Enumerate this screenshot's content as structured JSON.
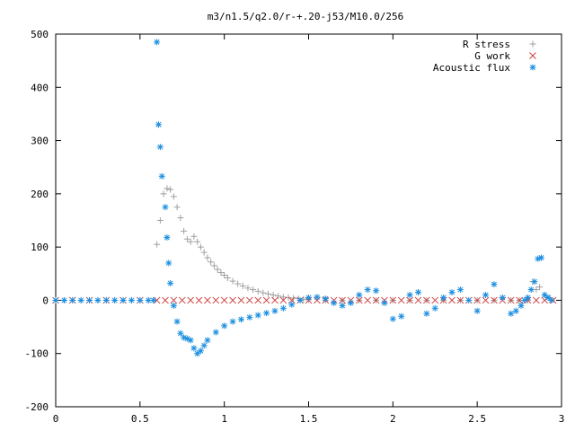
{
  "chart_data": {
    "type": "scatter",
    "title": "m3/n1.5/q2.0/r-+.20-j53/M10.0/256",
    "xlabel": "",
    "ylabel": "",
    "xlim": [
      0,
      3
    ],
    "ylim": [
      -200,
      500
    ],
    "xticks": [
      {
        "value": 0,
        "label": "0"
      },
      {
        "value": 0.5,
        "label": "0.5"
      },
      {
        "value": 1,
        "label": "1"
      },
      {
        "value": 1.5,
        "label": "1.5"
      },
      {
        "value": 2,
        "label": "2"
      },
      {
        "value": 2.5,
        "label": "2.5"
      },
      {
        "value": 3,
        "label": "3"
      }
    ],
    "yticks": [
      {
        "value": -200,
        "label": "-200"
      },
      {
        "value": -100,
        "label": "-100"
      },
      {
        "value": 0,
        "label": "0"
      },
      {
        "value": 100,
        "label": "100"
      },
      {
        "value": 200,
        "label": "200"
      },
      {
        "value": 300,
        "label": "300"
      },
      {
        "value": 400,
        "label": "400"
      },
      {
        "value": 500,
        "label": "500"
      }
    ],
    "grid": false,
    "legend_position": "top-right",
    "series": [
      {
        "name": "R stress",
        "marker": "plus",
        "color": "#a0a0a0",
        "x": [
          0.0,
          0.05,
          0.1,
          0.15,
          0.2,
          0.25,
          0.3,
          0.35,
          0.4,
          0.45,
          0.5,
          0.55,
          0.58,
          0.6,
          0.62,
          0.64,
          0.66,
          0.68,
          0.7,
          0.72,
          0.74,
          0.76,
          0.78,
          0.8,
          0.82,
          0.84,
          0.86,
          0.88,
          0.9,
          0.92,
          0.94,
          0.96,
          0.98,
          1.0,
          1.02,
          1.05,
          1.08,
          1.11,
          1.14,
          1.17,
          1.2,
          1.23,
          1.26,
          1.29,
          1.32,
          1.35,
          1.38,
          1.41,
          1.44,
          1.47,
          1.5,
          1.6,
          1.7,
          1.8,
          1.9,
          2.0,
          2.1,
          2.2,
          2.3,
          2.4,
          2.5,
          2.6,
          2.7,
          2.75,
          2.8,
          2.83,
          2.85,
          2.87,
          2.9,
          2.93
        ],
        "y": [
          0,
          0,
          0,
          0,
          0,
          0,
          0,
          0,
          0,
          0,
          0,
          0,
          0,
          105,
          150,
          200,
          210,
          208,
          195,
          175,
          155,
          130,
          115,
          110,
          120,
          110,
          100,
          90,
          80,
          72,
          65,
          58,
          52,
          47,
          42,
          36,
          31,
          27,
          23,
          20,
          17,
          14,
          12,
          10,
          8,
          6,
          5,
          4,
          3,
          2,
          1,
          0,
          0,
          0,
          0,
          0,
          0,
          0,
          0,
          0,
          0,
          0,
          0,
          0,
          0,
          35,
          20,
          25,
          10,
          5
        ]
      },
      {
        "name": "G work",
        "marker": "cross",
        "color": "#d04040",
        "x": [
          0.0,
          0.1,
          0.2,
          0.3,
          0.4,
          0.5,
          0.6,
          0.65,
          0.7,
          0.75,
          0.8,
          0.85,
          0.9,
          0.95,
          1.0,
          1.05,
          1.1,
          1.15,
          1.2,
          1.25,
          1.3,
          1.35,
          1.4,
          1.45,
          1.5,
          1.55,
          1.6,
          1.65,
          1.7,
          1.75,
          1.8,
          1.85,
          1.9,
          1.95,
          2.0,
          2.05,
          2.1,
          2.15,
          2.2,
          2.25,
          2.3,
          2.35,
          2.4,
          2.45,
          2.5,
          2.55,
          2.6,
          2.65,
          2.7,
          2.75,
          2.8,
          2.85,
          2.9,
          2.95
        ],
        "y": [
          0,
          0,
          0,
          0,
          0,
          0,
          0,
          0,
          0,
          0,
          0,
          0,
          0,
          0,
          0,
          0,
          0,
          0,
          0,
          0,
          0,
          0,
          0,
          0,
          0,
          0,
          0,
          0,
          0,
          0,
          0,
          0,
          0,
          0,
          0,
          0,
          0,
          0,
          0,
          0,
          0,
          0,
          0,
          0,
          0,
          0,
          0,
          0,
          0,
          0,
          0,
          0,
          0,
          0
        ]
      },
      {
        "name": "Acoustic flux",
        "marker": "star",
        "color": "#1a8ee0",
        "x": [
          0.0,
          0.05,
          0.1,
          0.15,
          0.2,
          0.25,
          0.3,
          0.35,
          0.4,
          0.45,
          0.5,
          0.55,
          0.58,
          0.6,
          0.61,
          0.62,
          0.63,
          0.65,
          0.66,
          0.67,
          0.68,
          0.7,
          0.72,
          0.74,
          0.76,
          0.78,
          0.8,
          0.82,
          0.84,
          0.86,
          0.88,
          0.9,
          0.95,
          1.0,
          1.05,
          1.1,
          1.15,
          1.2,
          1.25,
          1.3,
          1.35,
          1.4,
          1.45,
          1.5,
          1.55,
          1.6,
          1.65,
          1.7,
          1.75,
          1.8,
          1.85,
          1.9,
          1.95,
          2.0,
          2.05,
          2.1,
          2.15,
          2.2,
          2.25,
          2.3,
          2.35,
          2.4,
          2.45,
          2.5,
          2.55,
          2.6,
          2.65,
          2.7,
          2.73,
          2.76,
          2.78,
          2.8,
          2.82,
          2.84,
          2.86,
          2.88,
          2.9,
          2.92,
          2.94
        ],
        "y": [
          0,
          0,
          0,
          0,
          0,
          0,
          0,
          0,
          0,
          0,
          0,
          0,
          0,
          485,
          330,
          288,
          233,
          175,
          118,
          70,
          32,
          -10,
          -40,
          -62,
          -70,
          -72,
          -75,
          -90,
          -100,
          -95,
          -85,
          -75,
          -60,
          -48,
          -40,
          -36,
          -32,
          -28,
          -24,
          -20,
          -15,
          -8,
          0,
          5,
          6,
          3,
          -5,
          -10,
          -5,
          10,
          20,
          18,
          -5,
          -35,
          -30,
          10,
          15,
          -25,
          -15,
          5,
          15,
          20,
          0,
          -20,
          10,
          30,
          5,
          -25,
          -20,
          -10,
          0,
          5,
          20,
          35,
          78,
          80,
          10,
          5,
          0
        ]
      }
    ]
  }
}
